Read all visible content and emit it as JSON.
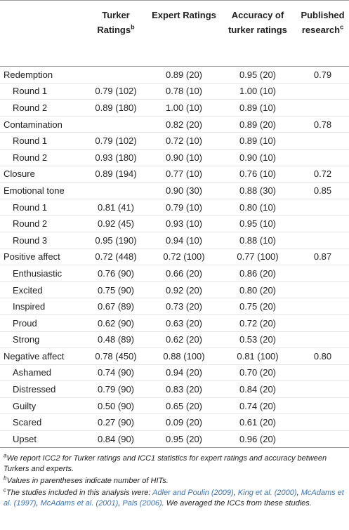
{
  "table": {
    "header": [
      {
        "text": "Turker Ratings",
        "sup": "b"
      },
      {
        "text": "Expert Ratings",
        "sup": null
      },
      {
        "text": "Accuracy of turker ratings",
        "sup": null
      },
      {
        "text": "Published research",
        "sup": "c"
      }
    ],
    "rows": [
      {
        "label": "Redemption",
        "indent": false,
        "cells": [
          null,
          "0.89 (20)",
          "0.95 (20)",
          "0.79"
        ]
      },
      {
        "label": "Round 1",
        "indent": true,
        "cells": [
          "0.79 (102)",
          "0.78 (10)",
          "1.00 (10)",
          null
        ]
      },
      {
        "label": "Round 2",
        "indent": true,
        "cells": [
          "0.89 (180)",
          "1.00 (10)",
          "0.89 (10)",
          null
        ]
      },
      {
        "label": "Contamination",
        "indent": false,
        "cells": [
          null,
          "0.82 (20)",
          "0.89 (20)",
          "0.78"
        ]
      },
      {
        "label": "Round 1",
        "indent": true,
        "cells": [
          "0.79 (102)",
          "0.72 (10)",
          "0.89 (10)",
          null
        ]
      },
      {
        "label": "Round 2",
        "indent": true,
        "cells": [
          "0.93 (180)",
          "0.90 (10)",
          "0.90 (10)",
          null
        ]
      },
      {
        "label": "Closure",
        "indent": false,
        "cells": [
          "0.89 (194)",
          "0.77 (10)",
          "0.76 (10)",
          "0.72"
        ]
      },
      {
        "label": "Emotional tone",
        "indent": false,
        "cells": [
          null,
          "0.90 (30)",
          "0.88 (30)",
          "0.85"
        ]
      },
      {
        "label": "Round 1",
        "indent": true,
        "cells": [
          "0.81 (41)",
          "0.79 (10)",
          "0.80 (10)",
          null
        ]
      },
      {
        "label": "Round 2",
        "indent": true,
        "cells": [
          "0.92 (45)",
          "0.93 (10)",
          "0.95 (10)",
          null
        ]
      },
      {
        "label": "Round 3",
        "indent": true,
        "cells": [
          "0.95 (190)",
          "0.94 (10)",
          "0.88 (10)",
          null
        ]
      },
      {
        "label": "Positive affect",
        "indent": false,
        "cells": [
          "0.72 (448)",
          "0.72 (100)",
          "0.77 (100)",
          "0.87"
        ]
      },
      {
        "label": "Enthusiastic",
        "indent": true,
        "cells": [
          "0.76 (90)",
          "0.66 (20)",
          "0.86 (20)",
          null
        ]
      },
      {
        "label": "Excited",
        "indent": true,
        "cells": [
          "0.75 (90)",
          "0.92 (20)",
          "0.80 (20)",
          null
        ]
      },
      {
        "label": "Inspired",
        "indent": true,
        "cells": [
          "0.67 (89)",
          "0.73 (20)",
          "0.75 (20)",
          null
        ]
      },
      {
        "label": "Proud",
        "indent": true,
        "cells": [
          "0.62 (90)",
          "0.63 (20)",
          "0.72 (20)",
          null
        ]
      },
      {
        "label": "Strong",
        "indent": true,
        "cells": [
          "0.48 (89)",
          "0.62 (20)",
          "0.53 (20)",
          null
        ]
      },
      {
        "label": "Negative affect",
        "indent": false,
        "cells": [
          "0.78 (450)",
          "0.88 (100)",
          "0.81 (100)",
          "0.80"
        ]
      },
      {
        "label": "Ashamed",
        "indent": true,
        "cells": [
          "0.74 (90)",
          "0.94 (20)",
          "0.70 (20)",
          null
        ]
      },
      {
        "label": "Distressed",
        "indent": true,
        "cells": [
          "0.79 (90)",
          "0.83 (20)",
          "0.84 (20)",
          null
        ]
      },
      {
        "label": "Guilty",
        "indent": true,
        "cells": [
          "0.50 (90)",
          "0.65 (20)",
          "0.74 (20)",
          null
        ]
      },
      {
        "label": "Scared",
        "indent": true,
        "cells": [
          "0.27 (90)",
          "0.09 (20)",
          "0.61 (20)",
          null
        ]
      },
      {
        "label": "Upset",
        "indent": true,
        "cells": [
          "0.84 (90)",
          "0.95 (20)",
          "0.96 (20)",
          null
        ]
      }
    ]
  },
  "footnotes": [
    {
      "mark": "a",
      "segments": [
        {
          "text": "We report ICC2 for Turker ratings and ICC1 statistics for expert ratings and accuracy between Turkers and experts.",
          "link": false
        }
      ]
    },
    {
      "mark": "b",
      "segments": [
        {
          "text": "Values in parentheses indicate number of HITs.",
          "link": false
        }
      ]
    },
    {
      "mark": "c",
      "segments": [
        {
          "text": "The studies included in this analysis were: ",
          "link": false
        },
        {
          "text": "Adler and Poulin (2009)",
          "link": true
        },
        {
          "text": ", ",
          "link": false
        },
        {
          "text": "King et al. (2000)",
          "link": true
        },
        {
          "text": ", ",
          "link": false
        },
        {
          "text": "McAdams et al. (1997)",
          "link": true
        },
        {
          "text": ", ",
          "link": false
        },
        {
          "text": "McAdams et al. (2001)",
          "link": true
        },
        {
          "text": ", ",
          "link": false
        },
        {
          "text": "Pals (2006)",
          "link": true
        },
        {
          "text": ". We averaged the ICCs from these studies.",
          "link": false
        }
      ]
    }
  ]
}
